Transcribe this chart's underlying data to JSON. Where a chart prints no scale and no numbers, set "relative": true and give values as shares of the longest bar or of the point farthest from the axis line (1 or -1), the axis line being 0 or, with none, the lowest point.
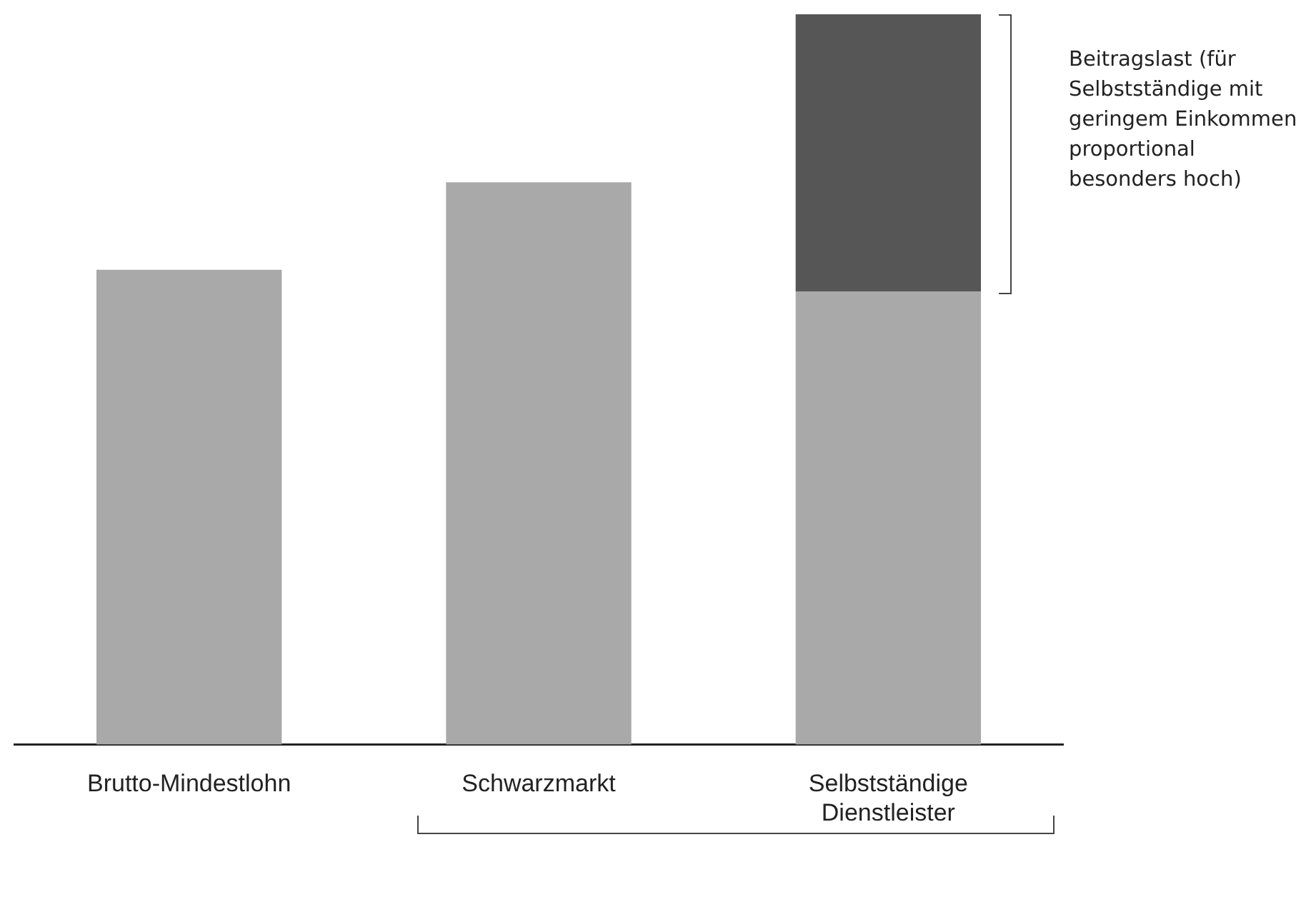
{
  "chart_data": {
    "type": "bar",
    "relative": true,
    "stacked": true,
    "categories": [
      "Brutto-Mindestlohn",
      "Schwarzmarkt",
      "Selbstständige Dienstleister"
    ],
    "series": [
      {
        "color": "#a9a9a9",
        "values": [
          0.65,
          0.77,
          0.62
        ]
      },
      {
        "color": "#565656",
        "values": [
          null,
          null,
          0.38
        ]
      }
    ],
    "annotations": [
      "Beitragslast (für Selbstständige mit geringem Einkommen proportional besonders hoch)"
    ]
  }
}
